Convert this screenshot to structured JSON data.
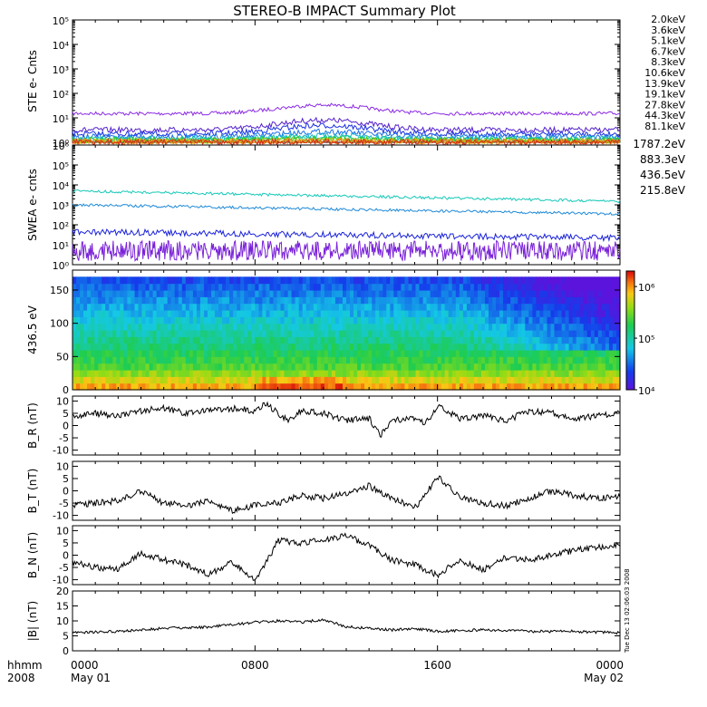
{
  "title": "STEREO-B IMPACT Summary Plot",
  "stamp": "Tue Dec 13 02:06:03 2008",
  "time_axis": {
    "label_top": "hhmm",
    "label_bottom": "2008",
    "ticks": [
      {
        "hhmm": "0000",
        "date": "May 01",
        "hour": 0
      },
      {
        "hhmm": "0800",
        "date": "",
        "hour": 8
      },
      {
        "hhmm": "1600",
        "date": "",
        "hour": 16
      },
      {
        "hhmm": "0000",
        "date": "May 02",
        "hour": 24
      }
    ]
  },
  "chart_data": [
    {
      "type": "line",
      "title": "",
      "ylabel": "STE e- Cnts",
      "yscale": "log",
      "ylim": [
        1,
        100000
      ],
      "yticks": [
        "10⁰",
        "10¹",
        "10²",
        "10³",
        "10⁴",
        "10⁵"
      ],
      "xlim": [
        0,
        24
      ],
      "legend_placement": "right",
      "series": [
        {
          "name": "2.0keV",
          "color": "#8b2be2",
          "level": 15,
          "bump": 2.2
        },
        {
          "name": "3.6keV",
          "color": "#5522cc",
          "level": 3.2,
          "bump": 2.5
        },
        {
          "name": "5.1keV",
          "color": "#1a2fe0",
          "level": 2.2,
          "bump": 2.2
        },
        {
          "name": "6.7keV",
          "color": "#1c6fe8",
          "level": 1.7,
          "bump": 1.6
        },
        {
          "name": "8.3keV",
          "color": "#17b5cf",
          "level": 1.45,
          "bump": 1.3
        },
        {
          "name": "10.6keV",
          "color": "#17c98f",
          "level": 1.3,
          "bump": 1.2
        },
        {
          "name": "13.9keV",
          "color": "#2fcb1c",
          "level": 1.2,
          "bump": 1.15
        },
        {
          "name": "19.1keV",
          "color": "#a6cf12",
          "level": 1.12,
          "bump": 1.1
        },
        {
          "name": "27.8keV",
          "color": "#f0a315",
          "level": 1.08,
          "bump": 1.08
        },
        {
          "name": "44.3keV",
          "color": "#e0701a",
          "level": 1.05,
          "bump": 1.05
        },
        {
          "name": "81.1keV",
          "color": "#d42e12",
          "level": 1.02,
          "bump": 1.03
        }
      ]
    },
    {
      "type": "line",
      "title": "",
      "ylabel": "SWEA e- cnts",
      "yscale": "log",
      "ylim": [
        1,
        1000000
      ],
      "yticks": [
        "10⁰",
        "10¹",
        "10²",
        "10³",
        "10⁴",
        "10⁵",
        "10⁶"
      ],
      "xlim": [
        0,
        24
      ],
      "legend_placement": "right",
      "series": [
        {
          "name": "1787.2eV",
          "color": "#7a22d8",
          "start": 5,
          "end": 5
        },
        {
          "name": "883.3eV",
          "color": "#1a22d8",
          "start": 45,
          "end": 22
        },
        {
          "name": "436.5eV",
          "color": "#1f8ad8",
          "start": 1000,
          "end": 350
        },
        {
          "name": "215.8eV",
          "color": "#16c8b8",
          "start": 5000,
          "end": 1500
        }
      ]
    },
    {
      "type": "heatmap",
      "title": "",
      "ylabel": "436.5 eV",
      "ylim": [
        0,
        180
      ],
      "yticks": [
        "0",
        "50",
        "100",
        "150"
      ],
      "xlim": [
        0,
        24
      ],
      "colorbar": {
        "scale": "log",
        "ticks": [
          "10⁴",
          "10⁵",
          "10⁶"
        ],
        "range": [
          10000,
          2000000
        ]
      }
    },
    {
      "type": "line",
      "title": "",
      "ylabel": "B_R (nT)",
      "ylim": [
        -12,
        12
      ],
      "yticks": [
        "-10",
        "-5",
        "0",
        "5",
        "10"
      ],
      "xlim": [
        0,
        24
      ],
      "series": [
        {
          "x": [
            0,
            1,
            2,
            3,
            4,
            5,
            6,
            7,
            8,
            8.5,
            9,
            9.5,
            10,
            11,
            12,
            13,
            13.5,
            14,
            15,
            15.5,
            16,
            17,
            18,
            19,
            20,
            21,
            22,
            23,
            24
          ],
          "values": [
            4,
            5,
            4,
            6,
            7,
            5,
            6,
            7,
            6,
            9,
            5,
            2,
            6,
            5,
            2,
            3,
            -4,
            2,
            3,
            1,
            8,
            3,
            4,
            2,
            6,
            5,
            3,
            4,
            5
          ]
        }
      ]
    },
    {
      "type": "line",
      "title": "",
      "ylabel": "B_T (nT)",
      "ylim": [
        -12,
        12
      ],
      "yticks": [
        "-10",
        "-5",
        "0",
        "5",
        "10"
      ],
      "xlim": [
        0,
        24
      ],
      "series": [
        {
          "x": [
            0,
            1,
            2,
            3,
            4,
            5,
            6,
            7,
            8,
            9,
            10,
            11,
            12,
            13,
            14,
            15,
            15.5,
            16,
            17,
            18,
            19,
            20,
            21,
            22,
            23,
            24
          ],
          "values": [
            -6,
            -5,
            -4,
            0,
            -5,
            -6,
            -4,
            -8,
            -6,
            -5,
            -2,
            -3,
            -1,
            2,
            -3,
            -7,
            -1,
            6,
            -3,
            -5,
            -6,
            -3,
            0,
            -2,
            -3,
            -2
          ]
        }
      ]
    },
    {
      "type": "line",
      "title": "",
      "ylabel": "B_N (nT)",
      "ylim": [
        -12,
        12
      ],
      "yticks": [
        "-10",
        "-5",
        "0",
        "5",
        "10"
      ],
      "xlim": [
        0,
        24
      ],
      "series": [
        {
          "x": [
            0,
            1,
            2,
            3,
            4,
            5,
            6,
            7,
            8,
            8.5,
            9,
            10,
            11,
            12,
            13,
            14,
            15,
            16,
            17,
            18,
            19,
            20,
            21,
            22,
            23,
            24
          ],
          "values": [
            -3,
            -5,
            -6,
            1,
            -2,
            -4,
            -8,
            -3,
            -10,
            -3,
            6,
            5,
            6,
            8,
            4,
            -2,
            -4,
            -8,
            -2,
            -6,
            -1,
            -2,
            0,
            2,
            3,
            4
          ]
        }
      ]
    },
    {
      "type": "line",
      "title": "",
      "ylabel": "|B| (nT)",
      "ylim": [
        0,
        20
      ],
      "yticks": [
        "0",
        "5",
        "10",
        "15",
        "20"
      ],
      "xlim": [
        0,
        24
      ],
      "series": [
        {
          "x": [
            0,
            2,
            4,
            6,
            8,
            9,
            10,
            11,
            12,
            13,
            14,
            15,
            16,
            18,
            20,
            22,
            24
          ],
          "values": [
            6,
            6.5,
            7.5,
            8,
            9.5,
            10,
            9.5,
            10.5,
            8,
            7.5,
            7,
            7.5,
            6.5,
            7,
            6.5,
            6.5,
            6
          ]
        }
      ]
    }
  ]
}
